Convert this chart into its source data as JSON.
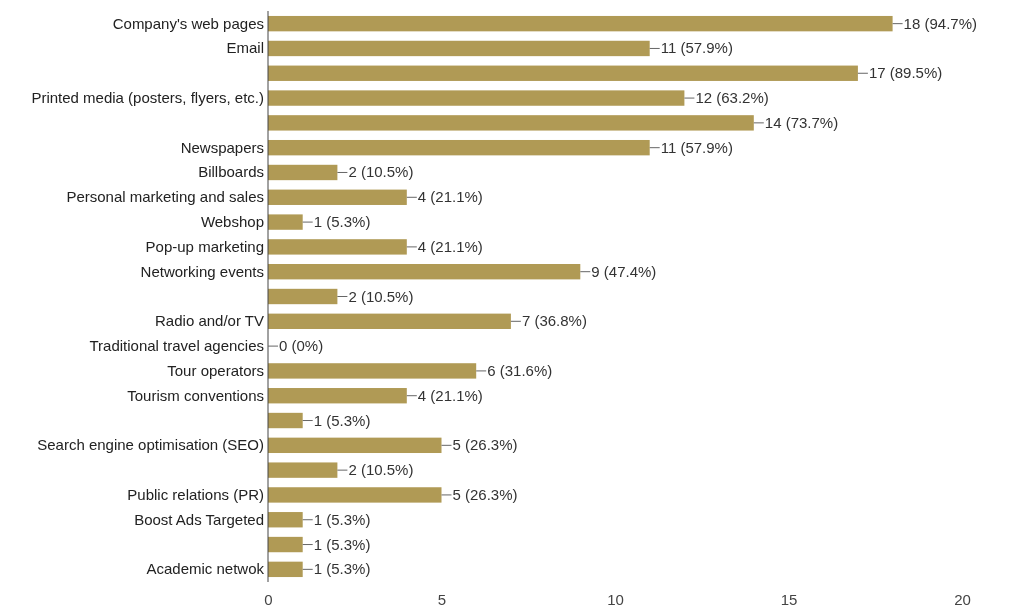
{
  "chart_data": {
    "type": "bar",
    "orientation": "horizontal",
    "color": "#b09a55",
    "categories": [
      "Company's web pages",
      "Email",
      null,
      "Printed media (posters, flyers, etc.)",
      null,
      "Newspapers",
      "Billboards",
      "Personal marketing and sales",
      "Webshop",
      "Pop-up marketing",
      "Networking events",
      null,
      "Radio and/or TV",
      "Traditional travel agencies",
      "Tour operators",
      "Tourism conventions",
      null,
      "Search engine optimisation (SEO)",
      null,
      "Public relations (PR)",
      "Boost Ads Targeted",
      null,
      "Academic netwok"
    ],
    "values": [
      18,
      11,
      17,
      12,
      14,
      11,
      2,
      4,
      1,
      4,
      9,
      2,
      7,
      0,
      6,
      4,
      1,
      5,
      2,
      5,
      1,
      1,
      1
    ],
    "value_labels": [
      "18 (94.7%)",
      "11 (57.9%)",
      "17 (89.5%)",
      "12 (63.2%)",
      "14 (73.7%)",
      "11 (57.9%)",
      "2 (10.5%)",
      "4 (21.1%)",
      "1 (5.3%)",
      "4 (21.1%)",
      "9 (47.4%)",
      "2 (10.5%)",
      "7 (36.8%)",
      "0 (0%)",
      "6 (31.6%)",
      "4 (21.1%)",
      "1 (5.3%)",
      "5 (26.3%)",
      "2 (10.5%)",
      "5 (26.3%)",
      "1 (5.3%)",
      "1 (5.3%)",
      "1 (5.3%)"
    ],
    "xlim": [
      0,
      20
    ],
    "xticks": [
      0,
      5,
      10,
      15,
      20
    ],
    "grid": false
  }
}
